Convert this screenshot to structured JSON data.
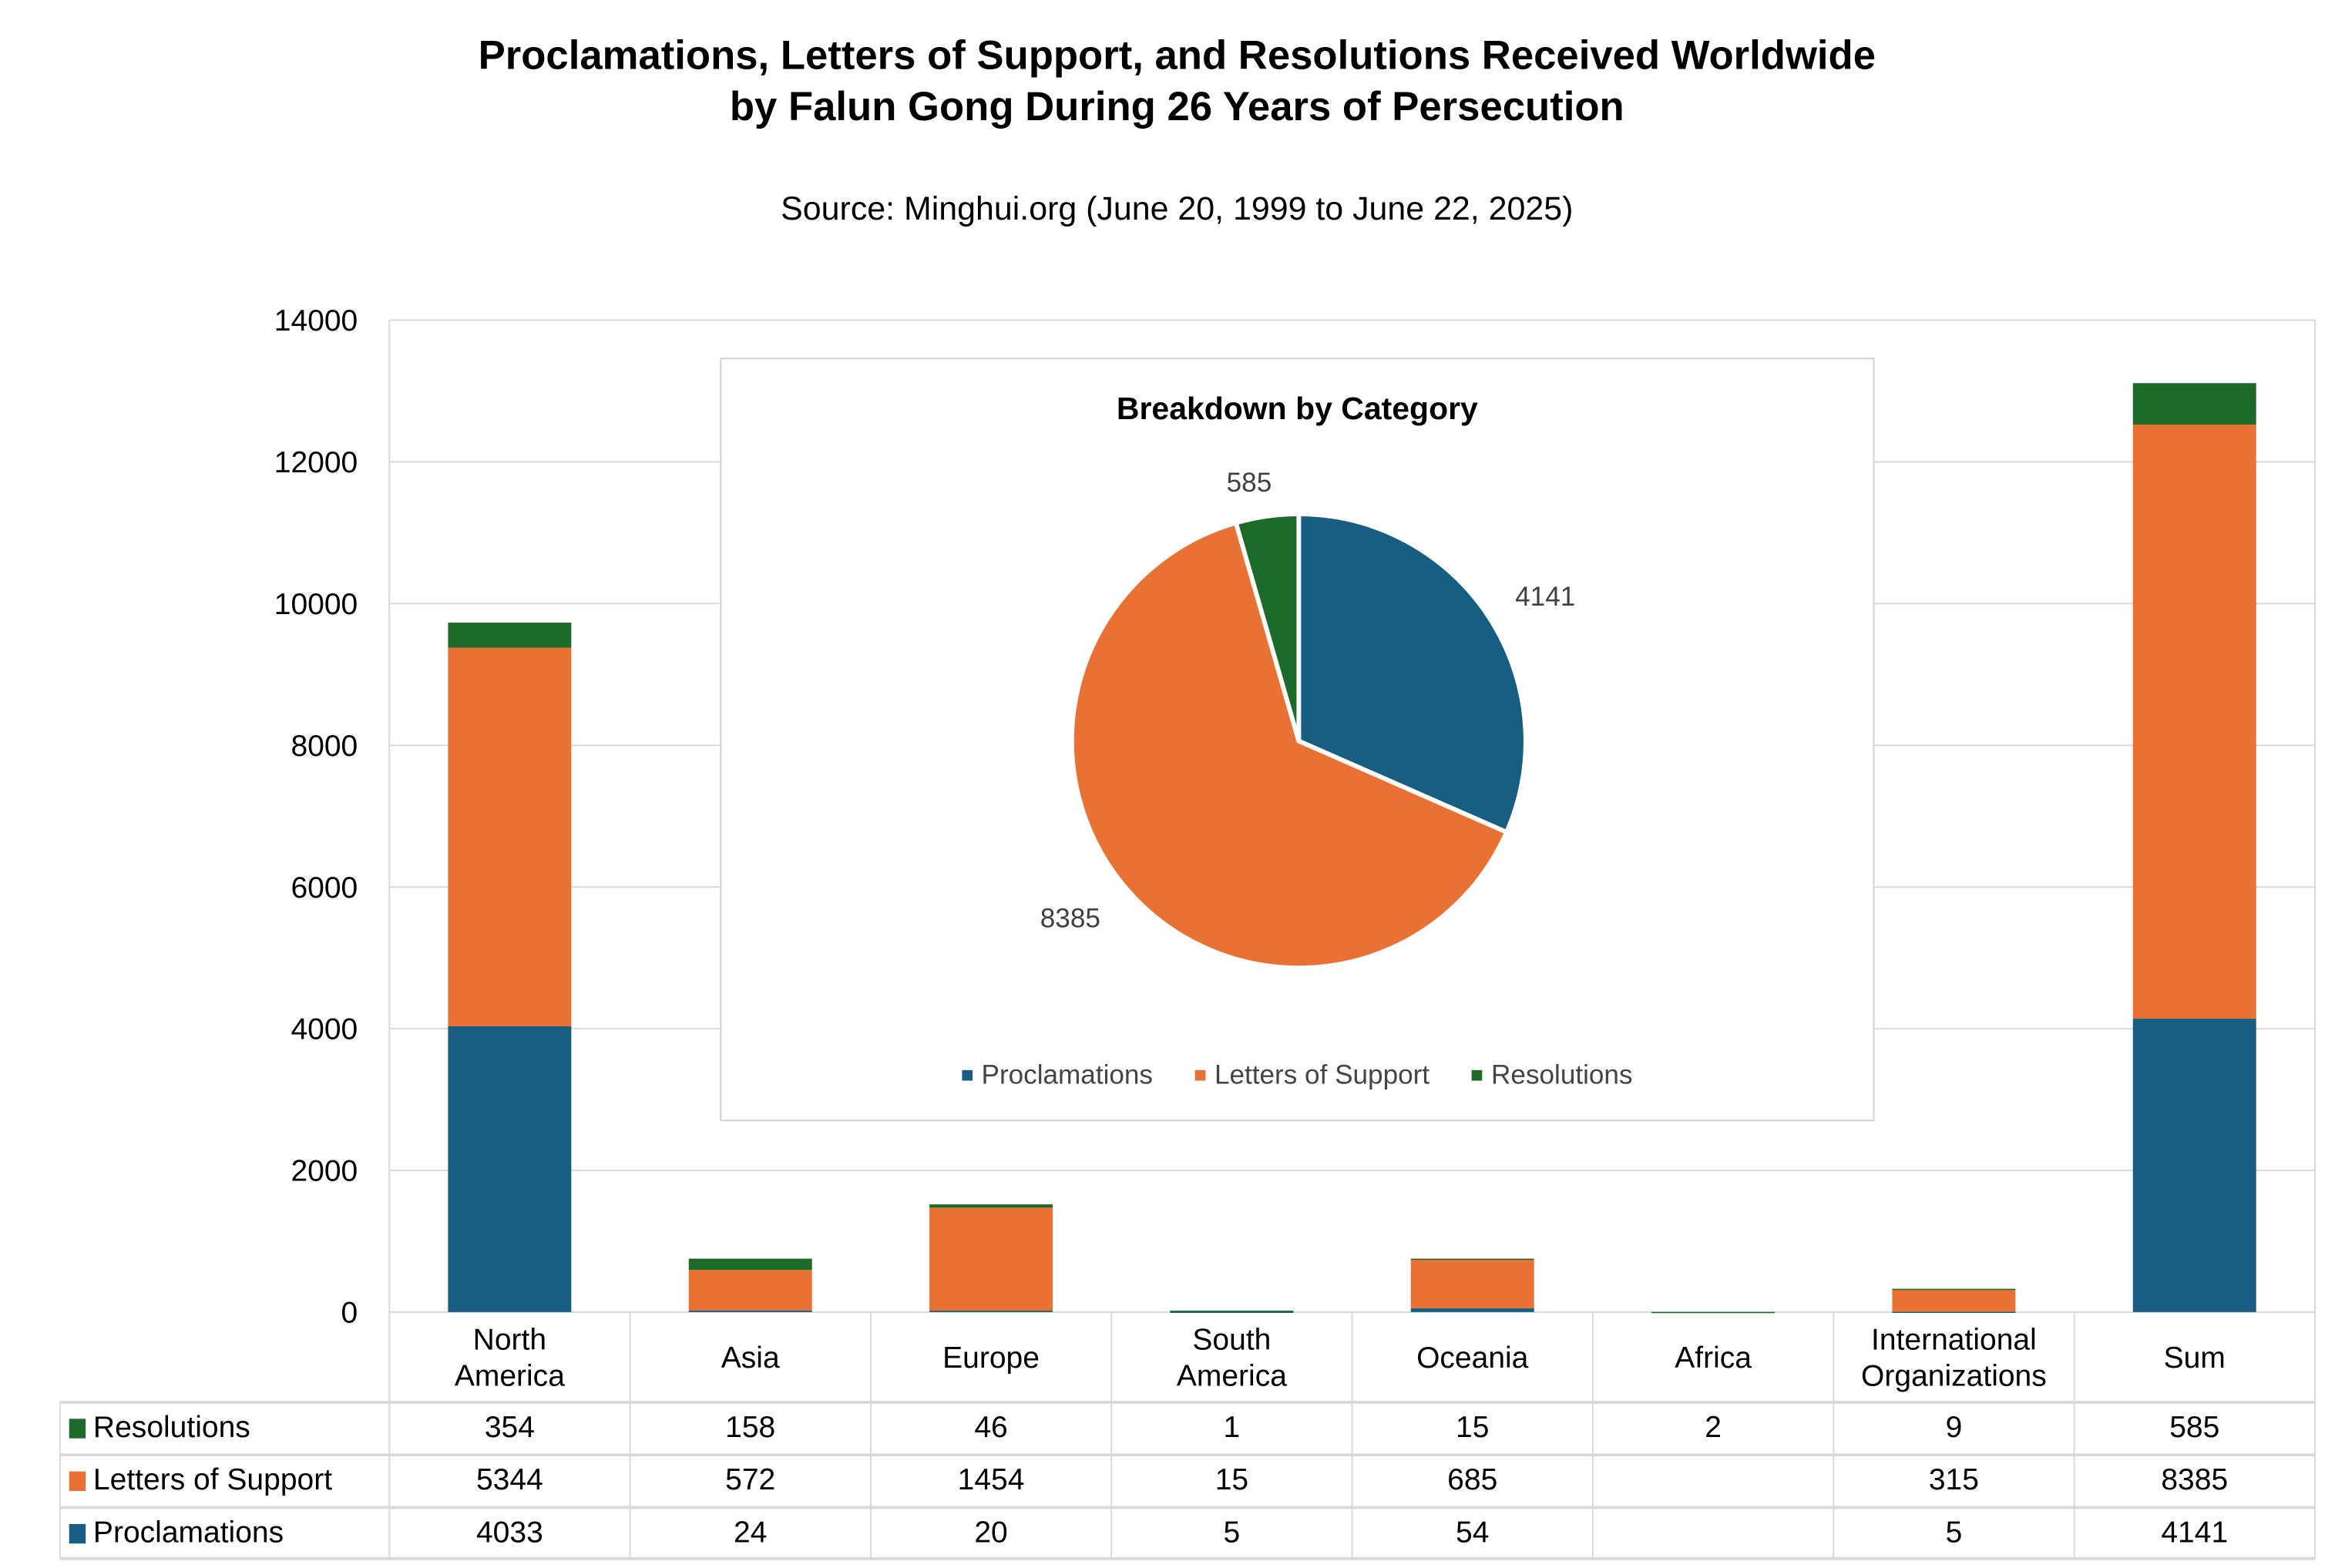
{
  "title_line1": "Proclamations, Letters of Support, and Resolutions Received Worldwide",
  "title_line2": "by Falun Gong During 26 Years of Persecution",
  "subtitle": "Source: Minghui.org (June 20, 1999 to June 22, 2025)",
  "colors": {
    "Proclamations": "#175e82",
    "Letters of Support": "#e97133",
    "Resolutions": "#1d6b2a"
  },
  "chart_data": [
    {
      "type": "bar",
      "stacked": true,
      "categories": [
        "North America",
        "Asia",
        "Europe",
        "South America",
        "Oceania",
        "Africa",
        "International Organizations",
        "Sum"
      ],
      "category_lines": [
        [
          "North",
          "America"
        ],
        [
          "Asia"
        ],
        [
          "Europe"
        ],
        [
          "South",
          "America"
        ],
        [
          "Oceania"
        ],
        [
          "Africa"
        ],
        [
          "International",
          "Organizations"
        ],
        [
          "Sum"
        ]
      ],
      "series": [
        {
          "name": "Resolutions",
          "values": [
            354,
            158,
            46,
            1,
            15,
            2,
            9,
            585
          ]
        },
        {
          "name": "Letters of Support",
          "values": [
            5344,
            572,
            1454,
            15,
            685,
            null,
            315,
            8385
          ]
        },
        {
          "name": "Proclamations",
          "values": [
            4033,
            24,
            20,
            5,
            54,
            null,
            5,
            4141
          ]
        }
      ],
      "ylim": [
        0,
        14000
      ],
      "yticks": [
        "0",
        "2000",
        "4000",
        "6000",
        "8000",
        "10000",
        "12000",
        "14000"
      ],
      "grid": true,
      "data_table": true
    },
    {
      "type": "pie",
      "title": "Breakdown by Category",
      "labels": [
        "Proclamations",
        "Letters of Support",
        "Resolutions"
      ],
      "values": [
        4141,
        8385,
        585
      ],
      "value_labels": [
        "4141",
        "8385",
        "585"
      ],
      "legend": "bottom"
    }
  ]
}
